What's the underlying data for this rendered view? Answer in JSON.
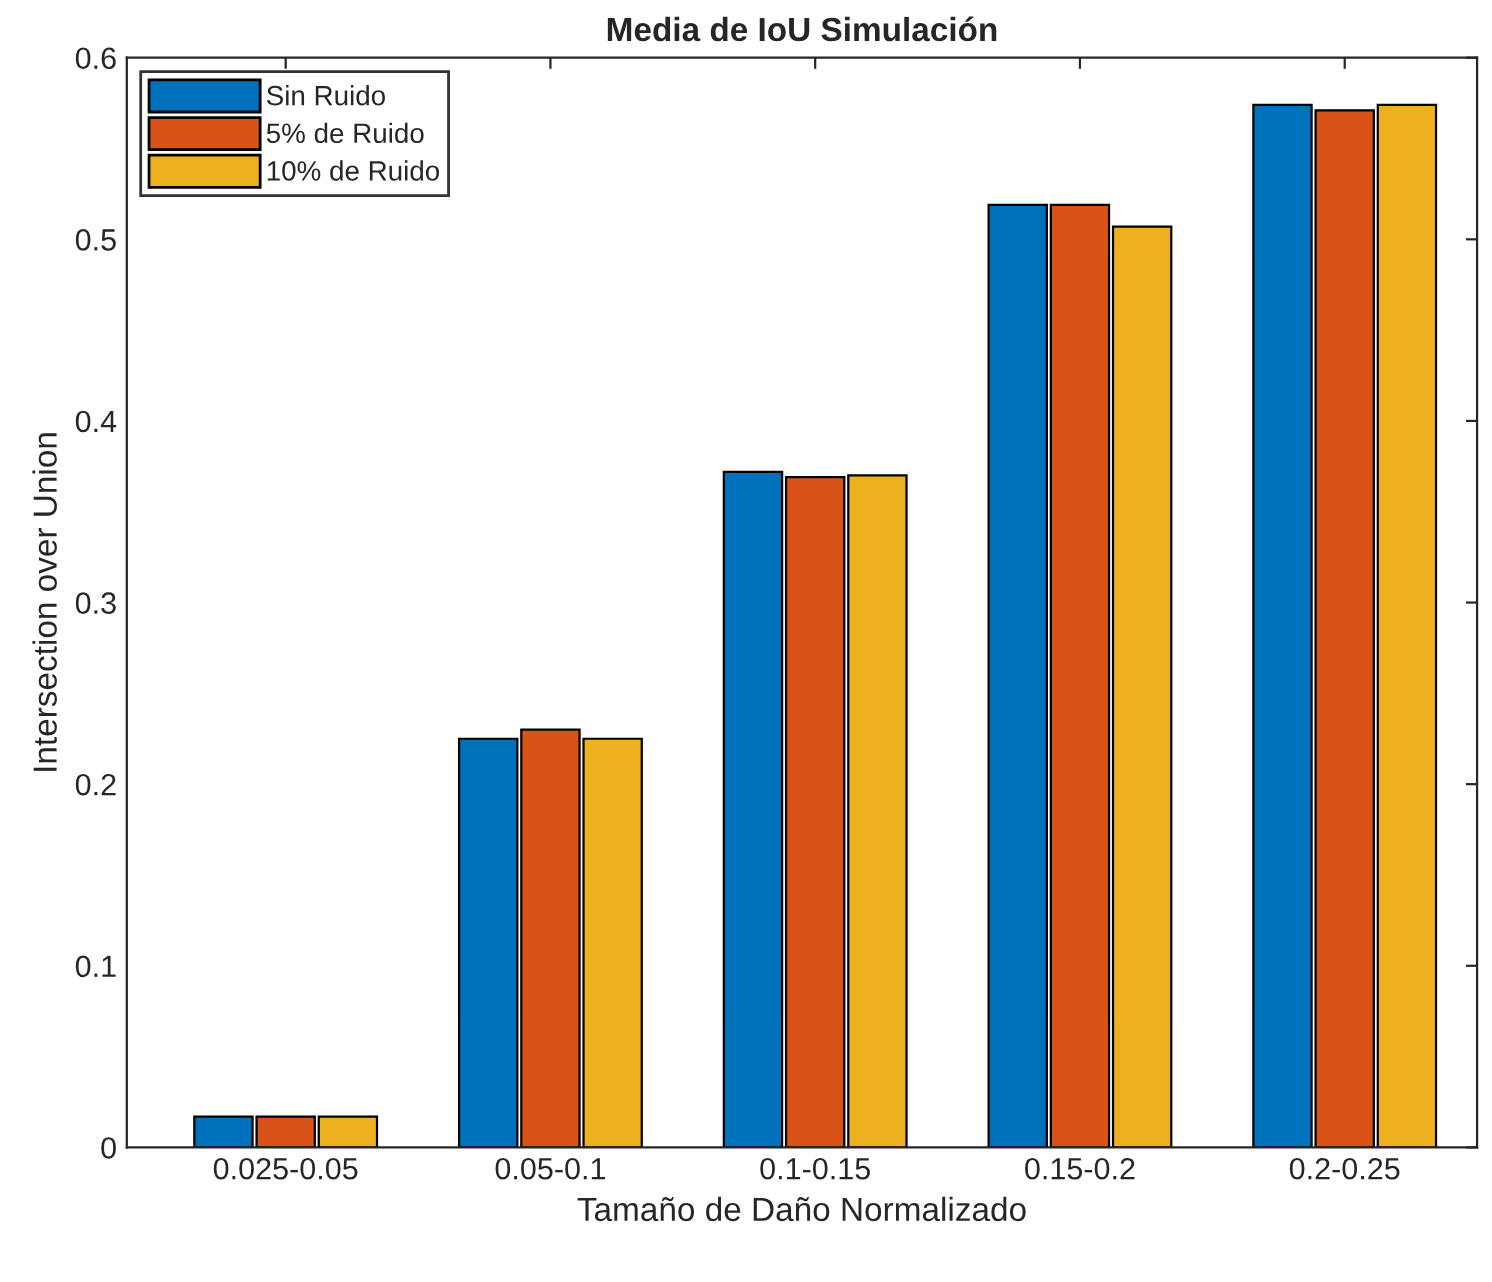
{
  "chart_data": {
    "type": "bar",
    "title": "Media de IoU Simulación",
    "xlabel": "Tamaño de Daño Normalizado",
    "ylabel": "Intersection over Union",
    "categories": [
      "0.025-0.05",
      "0.05-0.1",
      "0.1-0.15",
      "0.15-0.2",
      "0.2-0.25"
    ],
    "series": [
      {
        "name": "Sin Ruido",
        "color": "#0072bd",
        "values": [
          0.017,
          0.225,
          0.372,
          0.519,
          0.574
        ]
      },
      {
        "name": "5% de Ruido",
        "color": "#d95319",
        "values": [
          0.017,
          0.23,
          0.369,
          0.519,
          0.571
        ]
      },
      {
        "name": "10% de Ruido",
        "color": "#edb120",
        "values": [
          0.017,
          0.225,
          0.37,
          0.507,
          0.574
        ]
      }
    ],
    "ylim": [
      0,
      0.6
    ],
    "yticks": [
      0,
      0.1,
      0.2,
      0.3,
      0.4,
      0.5,
      0.6
    ],
    "legend": "top left",
    "grid": false
  }
}
